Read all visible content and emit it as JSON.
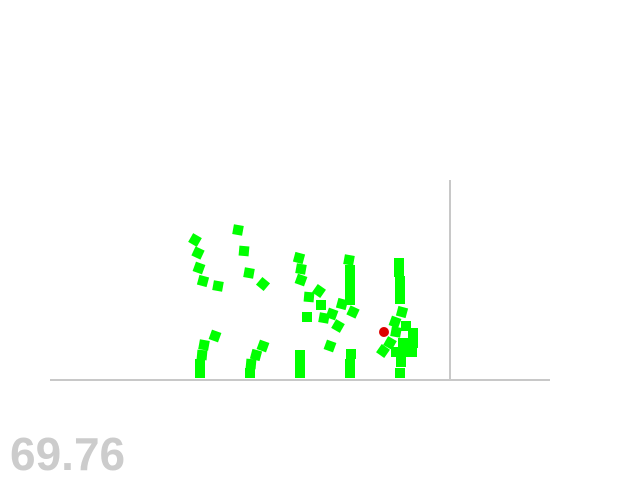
{
  "score": "69.76",
  "colors": {
    "background": "#ffffff",
    "ground": "#c8c8c8",
    "block": "#00ff00",
    "ball": "#dd0000",
    "score_text": "#cccccc"
  },
  "scene": {
    "elements": [
      "ground-line",
      "wall-line",
      "green-blocks",
      "red-ball"
    ],
    "block_count": 92,
    "ball_count": 1
  }
}
